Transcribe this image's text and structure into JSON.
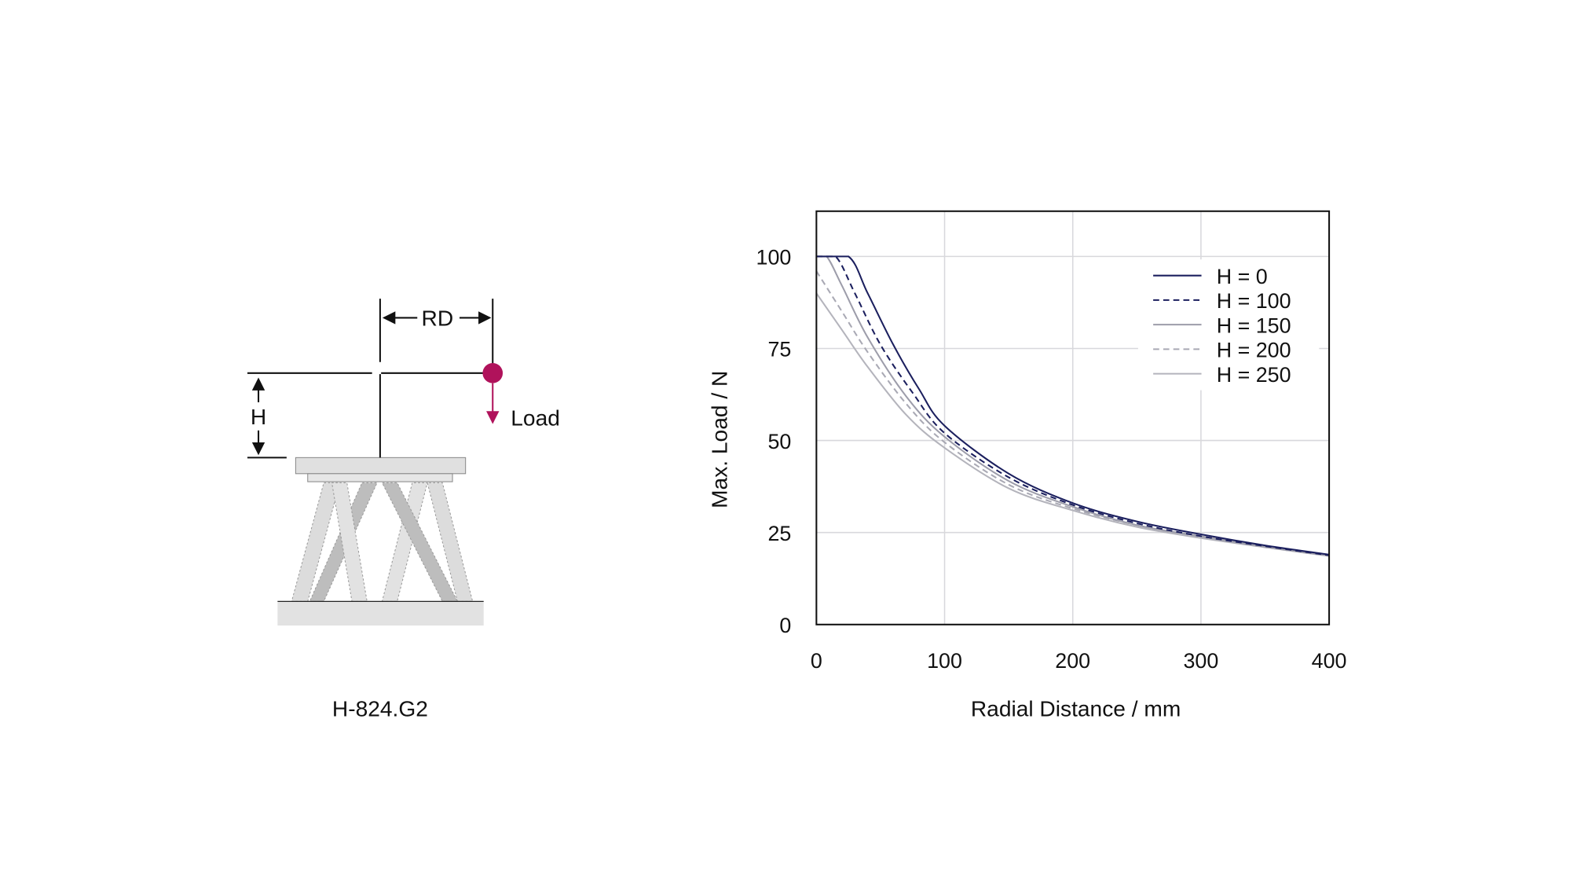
{
  "diagram": {
    "model_label": "H-824.G2",
    "rd_label": "RD",
    "h_label": "H",
    "load_label": "Load",
    "load_color": "#b0125b"
  },
  "chart_data": {
    "type": "line",
    "xlabel": "Radial Distance / mm",
    "ylabel": "Max. Load / N",
    "xlim": [
      0,
      400
    ],
    "ylim": [
      0,
      112
    ],
    "xticks": [
      "0",
      "100",
      "200",
      "300",
      "400"
    ],
    "yticks": [
      "0",
      "25",
      "50",
      "75",
      "100"
    ],
    "grid": true,
    "legend_position": "top-right",
    "series": [
      {
        "name": "H = 0",
        "color": "#1b1f5e",
        "dashed": false,
        "points": [
          [
            0,
            100
          ],
          [
            25,
            100
          ],
          [
            40,
            90
          ],
          [
            60,
            76
          ],
          [
            80,
            64
          ],
          [
            100,
            54
          ],
          [
            150,
            41
          ],
          [
            200,
            33
          ],
          [
            250,
            28
          ],
          [
            300,
            24.5
          ],
          [
            350,
            21.5
          ],
          [
            400,
            19
          ]
        ]
      },
      {
        "name": "H = 100",
        "color": "#1b1f5e",
        "dashed": true,
        "points": [
          [
            0,
            100
          ],
          [
            15,
            100
          ],
          [
            30,
            90
          ],
          [
            50,
            76
          ],
          [
            75,
            63
          ],
          [
            100,
            52
          ],
          [
            150,
            40
          ],
          [
            200,
            32.5
          ],
          [
            250,
            27.5
          ],
          [
            300,
            24
          ],
          [
            350,
            21.3
          ],
          [
            400,
            18.8
          ]
        ]
      },
      {
        "name": "H = 150",
        "color": "#9d9daa",
        "dashed": false,
        "points": [
          [
            0,
            100
          ],
          [
            8,
            100
          ],
          [
            20,
            92
          ],
          [
            40,
            78
          ],
          [
            70,
            62
          ],
          [
            100,
            51
          ],
          [
            150,
            39
          ],
          [
            200,
            32
          ],
          [
            250,
            27
          ],
          [
            300,
            24
          ],
          [
            350,
            21.2
          ],
          [
            400,
            18.8
          ]
        ]
      },
      {
        "name": "H = 200",
        "color": "#a9a9b4",
        "dashed": true,
        "points": [
          [
            0,
            96
          ],
          [
            20,
            85
          ],
          [
            40,
            74
          ],
          [
            70,
            60
          ],
          [
            100,
            49.5
          ],
          [
            150,
            38
          ],
          [
            200,
            31.5
          ],
          [
            250,
            27
          ],
          [
            300,
            23.8
          ],
          [
            350,
            21
          ],
          [
            400,
            18.7
          ]
        ]
      },
      {
        "name": "H = 250",
        "color": "#b4b4bc",
        "dashed": false,
        "points": [
          [
            0,
            90
          ],
          [
            20,
            80
          ],
          [
            40,
            70
          ],
          [
            70,
            57
          ],
          [
            100,
            48
          ],
          [
            150,
            37
          ],
          [
            200,
            31
          ],
          [
            250,
            26.5
          ],
          [
            300,
            23.5
          ],
          [
            350,
            21
          ],
          [
            400,
            18.6
          ]
        ]
      }
    ]
  }
}
